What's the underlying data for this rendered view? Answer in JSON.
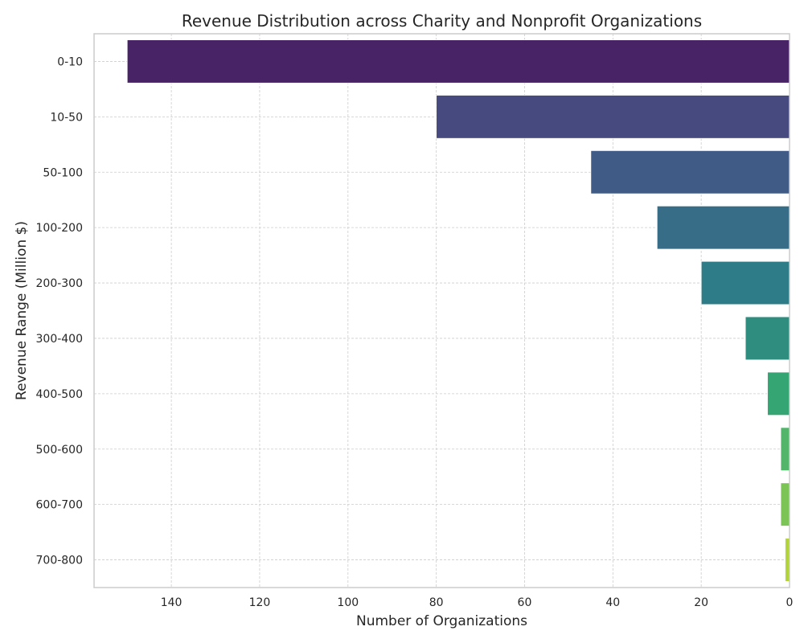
{
  "chart_data": {
    "type": "bar",
    "orientation": "horizontal",
    "x_axis_inverted": true,
    "title": "Revenue Distribution across Charity and Nonprofit Organizations",
    "xlabel": "Number of Organizations",
    "ylabel": "Revenue Range (Million $)",
    "categories": [
      "0-10",
      "10-50",
      "50-100",
      "100-200",
      "200-300",
      "300-400",
      "400-500",
      "500-600",
      "600-700",
      "700-800"
    ],
    "values": [
      150,
      80,
      45,
      30,
      20,
      10,
      5,
      2,
      2,
      1
    ],
    "xlim": [
      0,
      157.5
    ],
    "x_ticks": [
      0,
      20,
      40,
      60,
      80,
      100,
      120,
      140
    ],
    "grid": true,
    "colors": [
      "#482466",
      "#464a7e",
      "#3f5b86",
      "#376d86",
      "#2e7c87",
      "#2e8d7f",
      "#36a574",
      "#53b56a",
      "#7cc456",
      "#b2d43a"
    ]
  }
}
